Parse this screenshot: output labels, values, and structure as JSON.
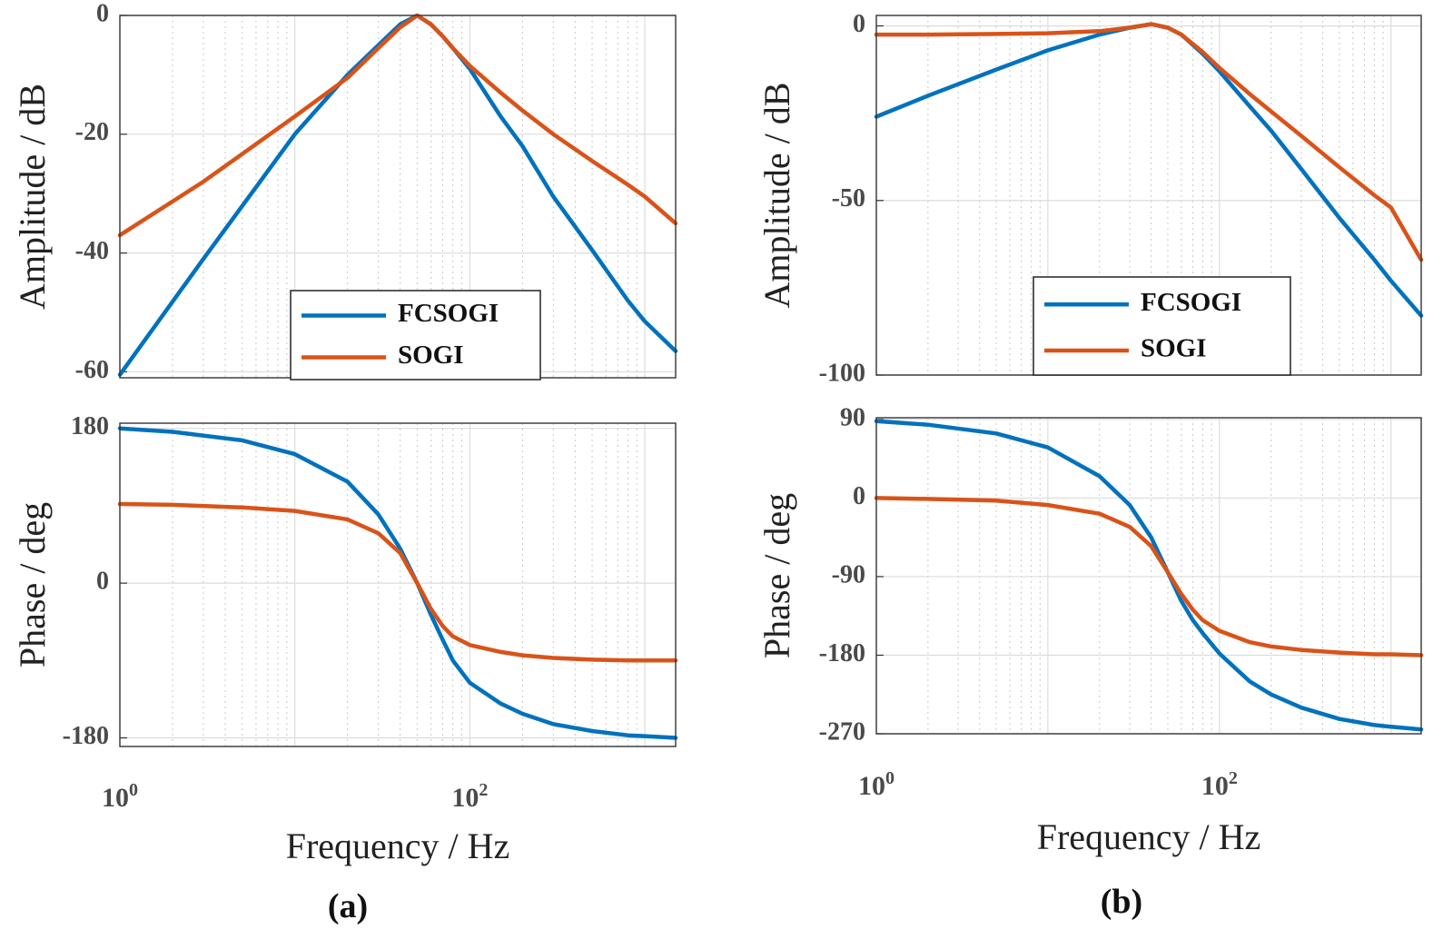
{
  "chart_data": [
    {
      "id": "a",
      "panel_label": "(a)",
      "xlabel": "Frequency / Hz",
      "xscale": "log",
      "xlim": [
        1,
        1500
      ],
      "xticks": [
        {
          "base": "10",
          "exp": "0"
        },
        {
          "base": "10",
          "exp": "2"
        }
      ],
      "grid": true,
      "magnitude": {
        "type": "line",
        "ylabel": "Amplitude / dB",
        "ylim": [
          -61,
          0
        ],
        "yticks": [
          "0",
          "-20",
          "-40",
          "-60"
        ],
        "legend": {
          "position": "bottom-center",
          "entries": [
            "FCSOGI",
            "SOGI"
          ]
        },
        "series": [
          {
            "name": "FCSOGI",
            "color": "#0072bd",
            "x": [
              1,
              3,
              10,
              20,
              30,
              40,
              50,
              60,
              70,
              80,
              100,
              150,
              200,
              300,
              500,
              800,
              1000,
              1500
            ],
            "y": [
              -60.5,
              -41,
              -20,
              -10,
              -5,
              -1.5,
              0,
              -1.5,
              -3.5,
              -5.5,
              -9,
              -17,
              -22,
              -30.5,
              -39.5,
              -48,
              -51.5,
              -56.5
            ]
          },
          {
            "name": "SOGI",
            "color": "#d95319",
            "x": [
              1,
              3,
              10,
              20,
              30,
              40,
              50,
              60,
              70,
              80,
              100,
              150,
              200,
              300,
              500,
              800,
              1000,
              1500
            ],
            "y": [
              -37,
              -28,
              -17,
              -10.5,
              -5.5,
              -2,
              0,
              -1.5,
              -3.5,
              -5.5,
              -8.5,
              -13,
              -16,
              -20,
              -24.5,
              -28.5,
              -30.5,
              -35
            ]
          }
        ]
      },
      "phase": {
        "type": "line",
        "ylabel": "Phase / deg",
        "ylim": [
          -190,
          186
        ],
        "yticks": [
          "180",
          "0",
          "-180"
        ],
        "series": [
          {
            "name": "FCSOGI",
            "color": "#0072bd",
            "x": [
              1,
              2,
              5,
              10,
              20,
              30,
              40,
              50,
              60,
              70,
              80,
              100,
              150,
              200,
              300,
              500,
              800,
              1000,
              1500
            ],
            "y": [
              180,
              176,
              166,
              150,
              118,
              80,
              40,
              0,
              -37,
              -66,
              -90,
              -116,
              -140,
              -152,
              -164,
              -172,
              -177,
              -178,
              -180
            ]
          },
          {
            "name": "SOGI",
            "color": "#d95319",
            "x": [
              1,
              2,
              5,
              10,
              20,
              30,
              40,
              50,
              60,
              70,
              80,
              100,
              150,
              200,
              300,
              500,
              800,
              1000,
              1500
            ],
            "y": [
              92,
              91,
              88,
              84,
              74,
              58,
              35,
              0,
              -30,
              -50,
              -62,
              -72,
              -80,
              -84,
              -87,
              -89,
              -90,
              -90,
              -90
            ]
          }
        ]
      }
    },
    {
      "id": "b",
      "panel_label": "(b)",
      "xlabel": "Frequency / Hz",
      "xscale": "log",
      "xlim": [
        1,
        1500
      ],
      "xticks": [
        {
          "base": "10",
          "exp": "0"
        },
        {
          "base": "10",
          "exp": "2"
        }
      ],
      "grid": true,
      "magnitude": {
        "type": "line",
        "ylabel": "Amplitude / dB",
        "ylim": [
          -100,
          3
        ],
        "yticks": [
          "0",
          "-50",
          "-100"
        ],
        "legend": {
          "position": "bottom-center",
          "entries": [
            "FCSOGI",
            "SOGI"
          ]
        },
        "series": [
          {
            "name": "FCSOGI",
            "color": "#0072bd",
            "x": [
              1,
              2,
              5,
              10,
              20,
              30,
              40,
              50,
              60,
              80,
              100,
              150,
              200,
              300,
              500,
              800,
              1000,
              1500
            ],
            "y": [
              -26,
              -20,
              -12.5,
              -7,
              -2.5,
              -0.5,
              0.5,
              -0.5,
              -2.5,
              -8,
              -13,
              -23,
              -30,
              -41,
              -55,
              -67,
              -73,
              -83
            ]
          },
          {
            "name": "SOGI",
            "color": "#d95319",
            "x": [
              1,
              2,
              5,
              10,
              20,
              30,
              40,
              50,
              60,
              80,
              100,
              150,
              200,
              300,
              500,
              800,
              1000,
              1500
            ],
            "y": [
              -2.5,
              -2.5,
              -2.3,
              -2.1,
              -1.5,
              -0.5,
              0.5,
              -0.5,
              -2.5,
              -7.5,
              -12,
              -19.5,
              -24.5,
              -31.5,
              -40.5,
              -48.5,
              -52,
              -67
            ]
          }
        ]
      },
      "phase": {
        "type": "line",
        "ylabel": "Phase / deg",
        "ylim": [
          -270,
          92
        ],
        "yticks": [
          "90",
          "0",
          "-90",
          "-180",
          "-270"
        ],
        "series": [
          {
            "name": "FCSOGI",
            "color": "#0072bd",
            "x": [
              1,
              2,
              5,
              10,
              20,
              30,
              40,
              50,
              60,
              70,
              80,
              100,
              150,
              200,
              300,
              500,
              800,
              1000,
              1500
            ],
            "y": [
              88,
              84,
              74,
              58,
              25,
              -8,
              -45,
              -85,
              -118,
              -140,
              -155,
              -178,
              -210,
              -225,
              -240,
              -253,
              -260,
              -262,
              -265
            ]
          },
          {
            "name": "SOGI",
            "color": "#d95319",
            "x": [
              1,
              2,
              5,
              10,
              20,
              30,
              40,
              50,
              60,
              70,
              80,
              100,
              150,
              200,
              300,
              500,
              800,
              1000,
              1500
            ],
            "y": [
              0,
              -1,
              -3,
              -8,
              -18,
              -33,
              -55,
              -85,
              -110,
              -128,
              -140,
              -152,
              -165,
              -170,
              -174,
              -177,
              -179,
              -179,
              -180
            ]
          }
        ]
      }
    }
  ]
}
